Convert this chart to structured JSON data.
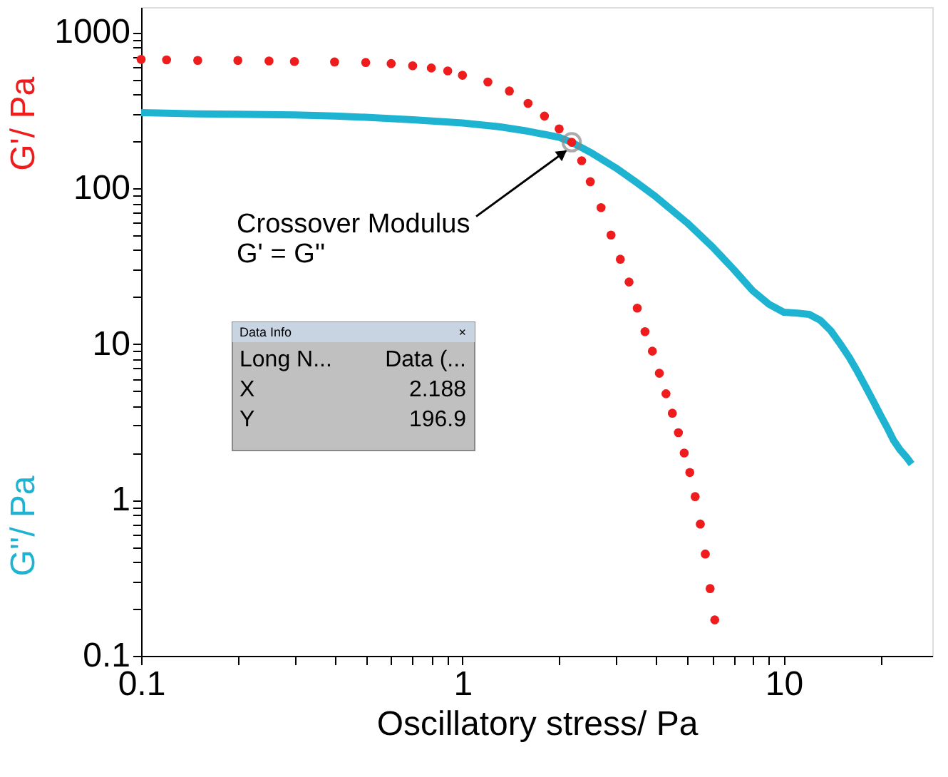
{
  "chart_data": {
    "type": "line",
    "xlabel": "Oscillatory stress/ Pa",
    "log": "xy",
    "grid": false,
    "legend": "left",
    "xlim": [
      0.1,
      29
    ],
    "ylim": [
      0.1,
      1450
    ],
    "xticks": [
      0.1,
      {
        "value": 0.2,
        "label": null
      },
      {
        "value": 0.3,
        "label": null
      },
      {
        "value": 0.4,
        "label": null
      },
      {
        "value": 0.5,
        "label": null
      },
      {
        "value": 0.6,
        "label": null
      },
      {
        "value": 0.7,
        "label": null
      },
      {
        "value": 0.8,
        "label": null
      },
      {
        "value": 0.9,
        "label": null
      },
      1,
      {
        "value": 2,
        "label": null
      },
      {
        "value": 3,
        "label": null
      },
      {
        "value": 4,
        "label": null
      },
      {
        "value": 5,
        "label": null
      },
      {
        "value": 6,
        "label": null
      },
      {
        "value": 7,
        "label": null
      },
      {
        "value": 8,
        "label": null
      },
      {
        "value": 9,
        "label": null
      },
      10,
      {
        "value": 20,
        "label": null
      }
    ],
    "yticks": [
      0.1,
      {
        "value": 0.2,
        "label": null
      },
      {
        "value": 0.3,
        "label": null
      },
      {
        "value": 0.4,
        "label": null
      },
      {
        "value": 0.5,
        "label": null
      },
      {
        "value": 0.6,
        "label": null
      },
      {
        "value": 0.7,
        "label": null
      },
      {
        "value": 0.8,
        "label": null
      },
      {
        "value": 0.9,
        "label": null
      },
      1,
      {
        "value": 2,
        "label": null
      },
      {
        "value": 3,
        "label": null
      },
      {
        "value": 4,
        "label": null
      },
      {
        "value": 5,
        "label": null
      },
      {
        "value": 6,
        "label": null
      },
      {
        "value": 7,
        "label": null
      },
      {
        "value": 8,
        "label": null
      },
      {
        "value": 9,
        "label": null
      },
      10,
      {
        "value": 20,
        "label": null
      },
      {
        "value": 30,
        "label": null
      },
      {
        "value": 40,
        "label": null
      },
      {
        "value": 50,
        "label": null
      },
      {
        "value": 60,
        "label": null
      },
      {
        "value": 70,
        "label": null
      },
      {
        "value": 80,
        "label": null
      },
      {
        "value": 90,
        "label": null
      },
      100,
      {
        "value": 200,
        "label": null
      },
      {
        "value": 300,
        "label": null
      },
      {
        "value": 400,
        "label": null
      },
      {
        "value": 500,
        "label": null
      },
      {
        "value": 600,
        "label": null
      },
      {
        "value": 700,
        "label": null
      },
      {
        "value": 800,
        "label": null
      },
      {
        "value": 900,
        "label": null
      },
      1000
    ],
    "series": [
      {
        "name": "G'/ Pa",
        "color": "#ee1c1c",
        "type": "scatter",
        "marker": "circle",
        "x": [
          0.1,
          0.12,
          0.15,
          0.2,
          0.25,
          0.3,
          0.4,
          0.5,
          0.6,
          0.7,
          0.8,
          0.9,
          1.0,
          1.2,
          1.4,
          1.6,
          1.8,
          2.0,
          2.188,
          2.35,
          2.5,
          2.7,
          2.9,
          3.1,
          3.3,
          3.5,
          3.7,
          3.9,
          4.1,
          4.3,
          4.5,
          4.7,
          4.9,
          5.1,
          5.3,
          5.5,
          5.7,
          5.9,
          6.1
        ],
        "values": [
          670,
          665,
          660,
          660,
          655,
          650,
          645,
          640,
          630,
          610,
          590,
          565,
          530,
          480,
          420,
          350,
          290,
          240,
          197,
          150,
          110,
          75,
          50,
          35,
          25,
          17,
          12,
          9,
          6.5,
          4.8,
          3.6,
          2.7,
          2.0,
          1.5,
          1.05,
          0.7,
          0.45,
          0.27,
          0.17
        ]
      },
      {
        "name": "G''/ Pa",
        "color": "#1fb3d2",
        "x": [
          0.1,
          0.15,
          0.2,
          0.3,
          0.4,
          0.5,
          0.7,
          1.0,
          1.3,
          1.6,
          2.0,
          2.188,
          2.5,
          3.0,
          3.5,
          4.0,
          5.0,
          6.0,
          7.0,
          8.0,
          9.0,
          10.0,
          11.0,
          12.0,
          13.0,
          14.0,
          15.0,
          16.0,
          17.0,
          18.0,
          19.0,
          20.0,
          21.0,
          22.0,
          23.0,
          24.0,
          25.0
        ],
        "values": [
          305,
          300,
          298,
          295,
          290,
          285,
          275,
          262,
          248,
          232,
          212,
          197,
          170,
          135,
          108,
          88,
          60,
          42,
          30,
          22,
          18,
          16,
          15.8,
          15.5,
          14.2,
          12.2,
          10,
          8.2,
          6.6,
          5.3,
          4.3,
          3.5,
          2.9,
          2.4,
          2.1,
          1.9,
          1.7
        ]
      }
    ],
    "annotations": [
      {
        "text": "Crossover Modulus\nG' = G''",
        "x": 2.188,
        "y": 196.9
      },
      "Data Info",
      "×",
      "Long N...",
      "Data (...",
      "X",
      "2.188",
      "Y",
      "196.9"
    ]
  }
}
